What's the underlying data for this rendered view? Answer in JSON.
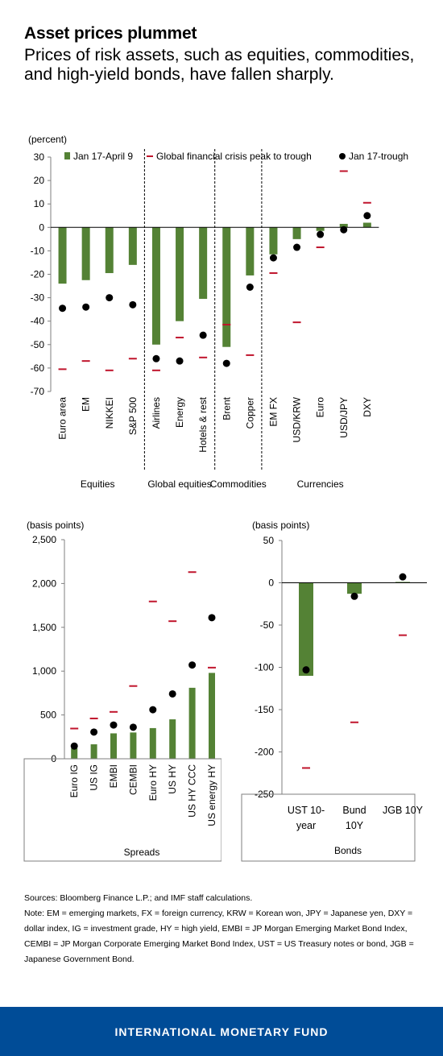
{
  "header": {
    "title": "Asset prices plummet",
    "subtitle": "Prices of risk assets, such as equities, commodities, and high-yield bonds, have fallen sharply."
  },
  "colors": {
    "bar": "#548235",
    "dash": "#c0142c",
    "dot": "#000000",
    "footer": "#004c97"
  },
  "chart_data": [
    {
      "type": "bar",
      "ylabel": "(percent)",
      "ylim": [
        -70,
        30
      ],
      "yticks": [
        30,
        20,
        10,
        0,
        -10,
        -20,
        -30,
        -40,
        -50,
        -60,
        -70
      ],
      "categories": [
        "Euro area",
        "EM",
        "NIKKEI",
        "S&P 500",
        "Airlines",
        "Energy",
        "Hotels & rest",
        "Brent",
        "Copper",
        "EM FX",
        "USD/KRW",
        "Euro",
        "USD/JPY",
        "DXY"
      ],
      "groups": [
        {
          "label": "Equities",
          "start": 0,
          "end": 3
        },
        {
          "label": "Global equities",
          "start": 4,
          "end": 6
        },
        {
          "label": "Commodities",
          "start": 7,
          "end": 8
        },
        {
          "label": "Currencies",
          "start": 9,
          "end": 13
        }
      ],
      "series": [
        {
          "name": "Jan 17-April 9",
          "style": "bar",
          "values": [
            -24,
            -22.5,
            -19.5,
            -16,
            -50,
            -40,
            -30.5,
            -51,
            -20.5,
            -11.5,
            -5,
            -1.5,
            1.5,
            2
          ]
        },
        {
          "name": "Global financial crisis peak to trough",
          "style": "dash",
          "values": [
            -60.5,
            -57,
            -61,
            -56,
            -61,
            -47,
            -55.5,
            -41.5,
            -54.5,
            -19.5,
            -40.5,
            -8.5,
            24,
            10.5
          ]
        },
        {
          "name": "Jan 17-trough",
          "style": "dot",
          "values": [
            -34.5,
            -34,
            -30,
            -33,
            -56,
            -57,
            -46,
            -58,
            -25.5,
            -13,
            -8.5,
            -3,
            -1,
            5
          ]
        }
      ],
      "legend": [
        "Jan 17-April 9",
        "Global financial crisis peak to trough",
        "Jan 17-trough"
      ],
      "legend_position": "top"
    },
    {
      "type": "bar",
      "ylabel": "(basis points)",
      "xlabel": "Spreads",
      "ylim": [
        0,
        2500
      ],
      "yticks": [
        0,
        500,
        1000,
        1500,
        2000,
        2500
      ],
      "ytick_labels": [
        "0",
        "500",
        "1,000",
        "1,500",
        "2,000",
        "2,500"
      ],
      "categories": [
        "Euro IG",
        "US IG",
        "EMBI",
        "CEMBI",
        "Euro HY",
        "US HY",
        "US HY CCC",
        "US energy HY"
      ],
      "series": [
        {
          "name": "Jan 17-April 9",
          "style": "bar",
          "values": [
            120,
            165,
            290,
            300,
            350,
            450,
            810,
            980
          ]
        },
        {
          "name": "Global financial crisis peak to trough",
          "style": "dash",
          "values": [
            345,
            460,
            535,
            830,
            1795,
            1570,
            2130,
            1040
          ]
        },
        {
          "name": "Jan 17-trough",
          "style": "dot",
          "values": [
            145,
            305,
            385,
            360,
            560,
            740,
            1070,
            1610
          ]
        }
      ]
    },
    {
      "type": "bar",
      "ylabel": "(basis points)",
      "xlabel": "Bonds",
      "ylim": [
        -250,
        50
      ],
      "yticks": [
        50,
        0,
        -50,
        -100,
        -150,
        -200,
        -250
      ],
      "categories": [
        "UST 10-year",
        "Bund 10Y",
        "JGB 10Y"
      ],
      "category_lines": [
        [
          "UST 10-",
          "year"
        ],
        [
          "Bund",
          "10Y"
        ],
        [
          "JGB 10Y"
        ]
      ],
      "series": [
        {
          "name": "Jan 17-April 9",
          "style": "bar",
          "values": [
            -110,
            -13,
            1
          ]
        },
        {
          "name": "Global financial crisis peak to trough",
          "style": "dash",
          "values": [
            -219,
            -165,
            -62
          ]
        },
        {
          "name": "Jan 17-trough",
          "style": "dot",
          "values": [
            -103,
            -16,
            7
          ]
        }
      ]
    }
  ],
  "notes": {
    "sources": "Sources: Bloomberg Finance L.P.; and IMF staff calculations.",
    "note": "Note: EM = emerging markets, FX = foreign currency, KRW = Korean won, JPY = Japanese yen, DXY = dollar index, IG = investment grade, HY = high yield, EMBI = JP Morgan Emerging Market Bond Index, CEMBI = JP Morgan Corporate Emerging Market Bond Index, UST = US Treasury notes or bond, JGB = Japanese Government Bond."
  },
  "footer": {
    "label": "INTERNATIONAL MONETARY FUND"
  }
}
